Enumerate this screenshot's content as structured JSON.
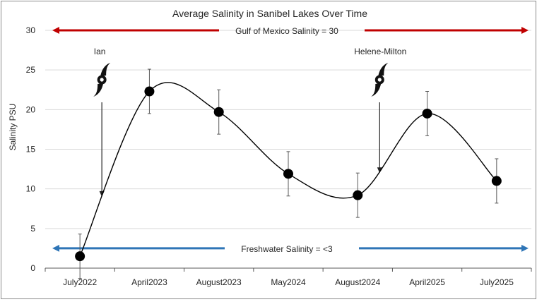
{
  "chart_data": {
    "type": "line",
    "title": "Average Salinity in Sanibel Lakes Over Time",
    "xlabel": "",
    "ylabel": "Salinity PSU",
    "ylim": [
      0,
      30
    ],
    "yticks": [
      "0",
      "5",
      "10",
      "15",
      "20",
      "25",
      "30"
    ],
    "categories": [
      "July2022",
      "April2023",
      "August2023",
      "May2024",
      "August2024",
      "April2025",
      "July2025"
    ],
    "series": [
      {
        "values": [
          1.5,
          22.3,
          19.7,
          11.9,
          9.2,
          19.5,
          11.0
        ],
        "error": [
          2.8,
          2.8,
          2.8,
          2.8,
          2.8,
          2.8,
          2.8
        ],
        "smooth": true,
        "color": "#000000"
      }
    ],
    "grid": "horizontal",
    "reference_lines": [
      {
        "label": "Gulf of Mexico Salinity = 30",
        "value": 30,
        "color": "#c00000"
      },
      {
        "label": "Freshwater Salinity = <3",
        "value": 2.5,
        "color": "#2e75b6"
      }
    ],
    "annotations": [
      {
        "label": "Ian",
        "icon": "hurricane-icon",
        "category": "July2022",
        "arrow_to": 9.0
      },
      {
        "label": "Helene-Milton",
        "icon": "hurricane-icon",
        "category": "August2024",
        "arrow_to": 12.0
      }
    ]
  }
}
